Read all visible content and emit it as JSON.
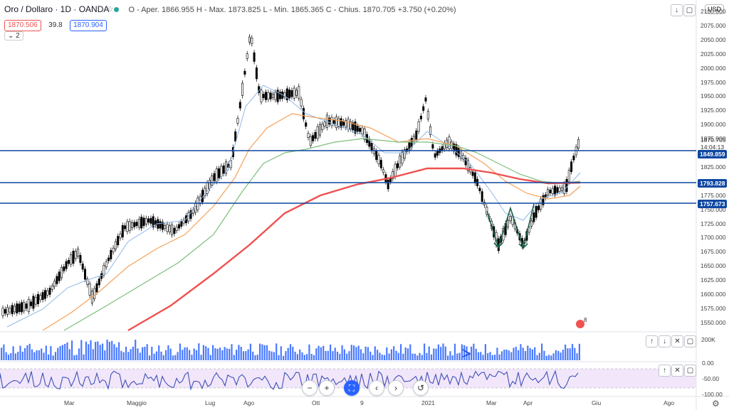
{
  "header": {
    "symbol": "Oro / Dollaro · 1D · OANDA",
    "ohlc": "O - Aper. 1866.955  H - Max. 1873.825  L - Min. 1865.365  C - Chius. 1870.705  +3.750 (+0.20%)",
    "bid": "1870.506",
    "spread": "39.8",
    "ask": "1870.904",
    "studies_toggle": "2"
  },
  "currency": "USD",
  "price_axis": [
    "2100.000",
    "2075.000",
    "2050.000",
    "2025.000",
    "2000.000",
    "1975.000",
    "1950.000",
    "1925.000",
    "1900.000",
    "1875.000",
    "1850.000",
    "1825.000",
    "1800.000",
    "1775.000",
    "1750.000",
    "1725.000",
    "1700.000",
    "1675.000",
    "1650.000",
    "1625.000",
    "1600.000",
    "1575.000",
    "1550.000"
  ],
  "last_price": "1870.705",
  "countdown": "14:04:13",
  "levels": [
    {
      "value": "1849.859",
      "color": "#0d47a1"
    },
    {
      "value": "1793.828",
      "color": "#0d47a1"
    },
    {
      "value": "1757.673",
      "color": "#0d47a1"
    }
  ],
  "volume_axis": "200K",
  "rsi_axis": [
    "0.00",
    "-50.00",
    "-100.00"
  ],
  "time_axis": [
    "Mar",
    "Maggio",
    "Lug",
    "Ago",
    "Ott",
    "9",
    "2021",
    "Mar",
    "Apr",
    "Giu",
    "Ago"
  ],
  "earnings_badge": "8",
  "controls": {
    "minus": "−",
    "plus": "+",
    "left": "‹",
    "right": "›",
    "reset": "↺"
  },
  "colors": {
    "up": "#26a69a",
    "down": "#ef5350",
    "ma_blue": "#8fb8e8",
    "ma_orange": "#f5a25a",
    "ma_green": "#7cbf7c",
    "ma_red": "#f05050",
    "rsi": "#3f51b5",
    "rsi_band": "#e9d8f5"
  }
}
